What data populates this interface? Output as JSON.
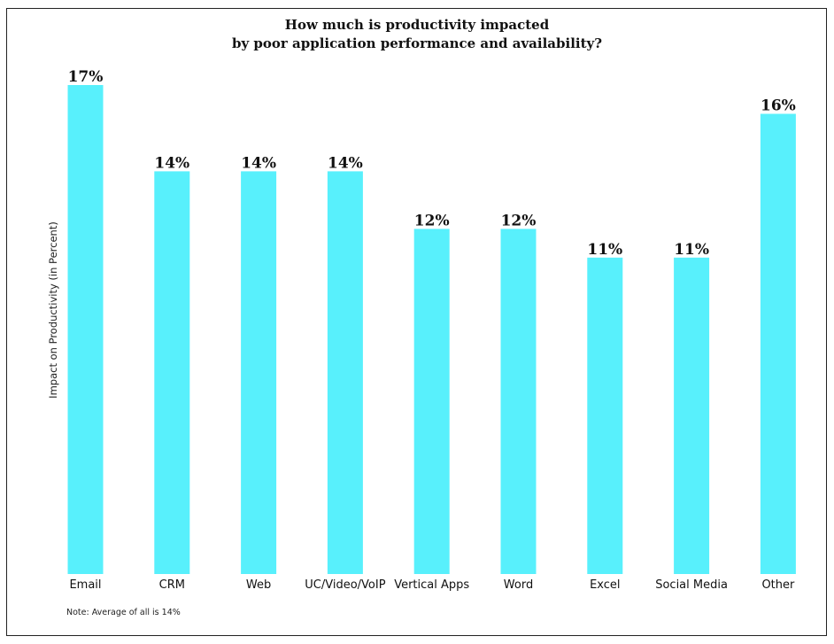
{
  "chart_data": {
    "type": "bar",
    "title_lines": [
      "How much is productivity impacted",
      "by poor application performance and availability?"
    ],
    "xlabel": "",
    "ylabel": "Impact on Productivity (in Percent)",
    "categories": [
      "Email",
      "CRM",
      "Web",
      "UC/Video/VoIP",
      "Vertical Apps",
      "Word",
      "Excel",
      "Social Media",
      "Other"
    ],
    "values": [
      17,
      14,
      14,
      14,
      12,
      12,
      11,
      11,
      16
    ],
    "value_labels": [
      "17%",
      "14%",
      "14%",
      "14%",
      "12%",
      "12%",
      "11%",
      "11%",
      "16%"
    ],
    "ylim": [
      0,
      17
    ],
    "grid": false,
    "legend": "none",
    "bar_color": "#58f0fc",
    "note": "Note: Average of all is 14%"
  }
}
